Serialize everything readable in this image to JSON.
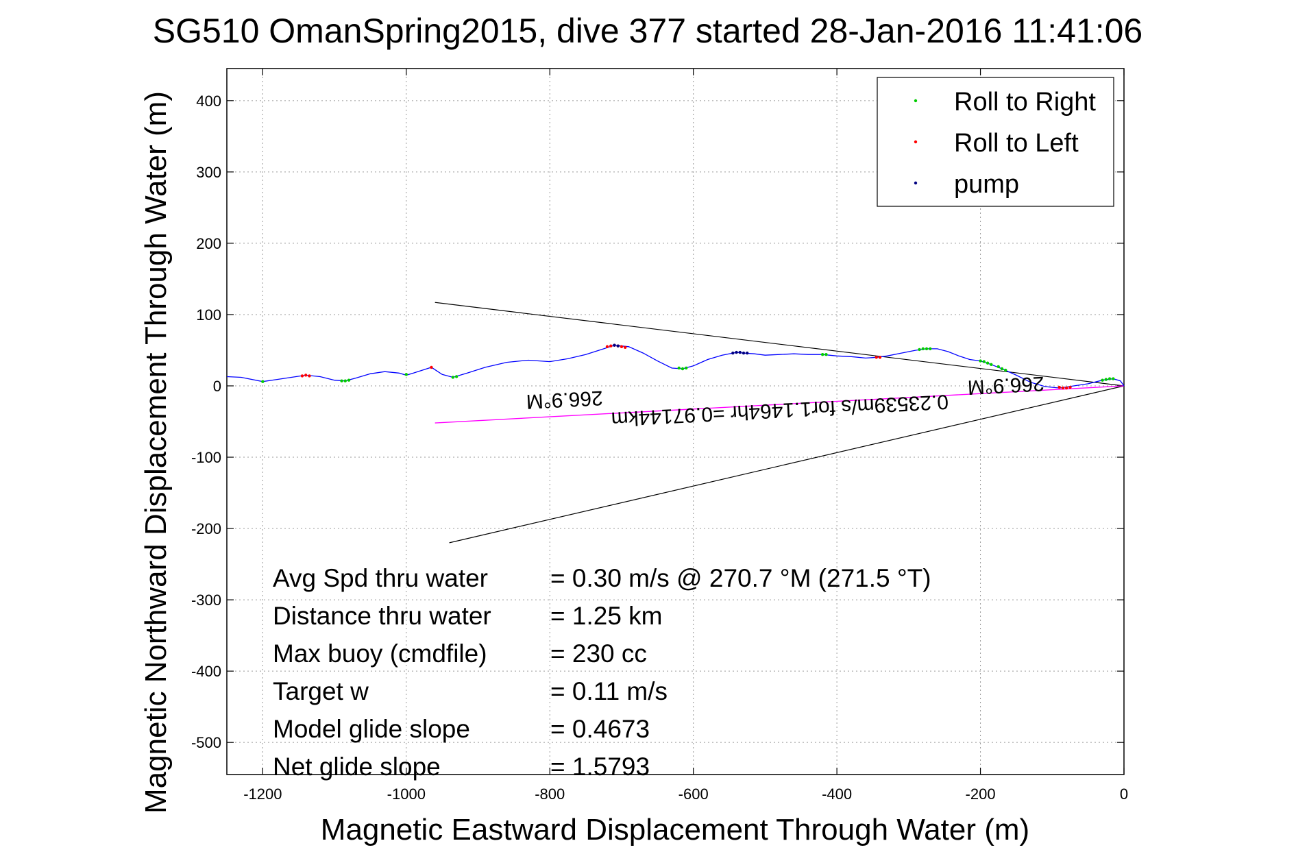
{
  "chart_data": {
    "type": "line",
    "title": "SG510 OmanSpring2015, dive 377 started 28-Jan-2016 11:41:06",
    "xlabel": "Magnetic Eastward Displacement Through Water (m)",
    "ylabel": "Magnetic Northward Displacement Through Water (m)",
    "xlim": [
      -1250,
      0
    ],
    "ylim": [
      -545,
      445
    ],
    "xticks": [
      -1200,
      -1000,
      -800,
      -600,
      -400,
      -200,
      0
    ],
    "yticks": [
      -500,
      -400,
      -300,
      -200,
      -100,
      0,
      100,
      200,
      300,
      400
    ],
    "xtick_labels": [
      "-1200",
      "-1000",
      "-800",
      "-600",
      "-400",
      "-200",
      "0"
    ],
    "ytick_labels": [
      "-500",
      "-400",
      "-300",
      "-200",
      "-100",
      "0",
      "100",
      "200",
      "300",
      "400"
    ],
    "grid": true,
    "legend_position": "top-right",
    "legend": [
      {
        "label": "Roll to Right",
        "color": "#00cc00"
      },
      {
        "label": "Roll to Left",
        "color": "#ff0000"
      },
      {
        "label": "pump",
        "color": "#000080"
      }
    ],
    "track": {
      "color": "#0000ff",
      "x": [
        -1250,
        -1230,
        -1200,
        -1180,
        -1160,
        -1140,
        -1120,
        -1100,
        -1085,
        -1070,
        -1050,
        -1030,
        -1010,
        -1000,
        -990,
        -965,
        -950,
        -935,
        -915,
        -890,
        -860,
        -830,
        -800,
        -775,
        -750,
        -725,
        -710,
        -690,
        -670,
        -650,
        -630,
        -615,
        -600,
        -580,
        -560,
        -540,
        -530,
        -515,
        -500,
        -480,
        -460,
        -440,
        -420,
        -400,
        -380,
        -360,
        -345,
        -330,
        -310,
        -290,
        -275,
        -260,
        -245,
        -230,
        -215,
        -200,
        -185,
        -170,
        -150,
        -130,
        -110,
        -90,
        -70,
        -50,
        -30,
        -15,
        -5,
        0
      ],
      "y": [
        13,
        12,
        6,
        9,
        12,
        15,
        13,
        8,
        7,
        11,
        17,
        20,
        18,
        15,
        18,
        26,
        16,
        12,
        18,
        26,
        33,
        36,
        34,
        38,
        44,
        52,
        57,
        55,
        46,
        35,
        25,
        24,
        28,
        37,
        43,
        47,
        46,
        45,
        43,
        44,
        45,
        44,
        44,
        42,
        41,
        39,
        40,
        42,
        46,
        50,
        52,
        52,
        48,
        42,
        37,
        35,
        30,
        24,
        15,
        5,
        -1,
        -3,
        0,
        3,
        8,
        10,
        7,
        0
      ]
    },
    "roll_right_points": {
      "color": "#00cc00",
      "x": [
        -1200,
        -1090,
        -1085,
        -1080,
        -1000,
        -935,
        -930,
        -620,
        -615,
        -610,
        -420,
        -415,
        -285,
        -280,
        -275,
        -270,
        -200,
        -195,
        -190,
        -185,
        -175,
        -170,
        -165,
        -30,
        -25,
        -20,
        -15
      ],
      "y": [
        6,
        7,
        7,
        8,
        16,
        12,
        13,
        25,
        24,
        25,
        44,
        44,
        51,
        52,
        52,
        52,
        35,
        34,
        32,
        30,
        27,
        24,
        22,
        8,
        9,
        10,
        10
      ]
    },
    "roll_left_points": {
      "color": "#ff0000",
      "x": [
        -1145,
        -1140,
        -1135,
        -965,
        -720,
        -715,
        -710,
        -705,
        -700,
        -695,
        -345,
        -340,
        -90,
        -85,
        -80,
        -75
      ],
      "y": [
        14,
        15,
        14,
        26,
        55,
        56,
        57,
        56,
        55,
        54,
        40,
        40,
        -2,
        -3,
        -3,
        -2
      ]
    },
    "pump_points": {
      "color": "#000080",
      "x": [
        -710,
        -705,
        -545,
        -540,
        -535,
        -530,
        -525
      ],
      "y": [
        57,
        56,
        46,
        47,
        47,
        46,
        46
      ]
    },
    "fan_lines": [
      {
        "color": "#000000",
        "x": [
          -960,
          0
        ],
        "y": [
          117,
          0
        ]
      },
      {
        "color": "#000000",
        "x": [
          -940,
          0
        ],
        "y": [
          -220,
          0
        ]
      }
    ],
    "heading_line": {
      "color": "#ff00ff",
      "x": [
        -960,
        0
      ],
      "y": [
        -52,
        0
      ]
    },
    "annotations_rotated": [
      {
        "text": "266.9°M",
        "x": -165,
        "y": 10
      },
      {
        "text": "0.23539m/s for1.1464hr =0.97144km",
        "x": -480,
        "y": -25
      },
      {
        "text": "266.9°M",
        "x": -780,
        "y": -10
      }
    ],
    "summary_rows": [
      {
        "label": "Avg Spd thru water",
        "value": "=  0.30 m/s @ 270.7 °M (271.5 °T)"
      },
      {
        "label": "Distance thru water",
        "value": "=  1.25 km"
      },
      {
        "label": "Max buoy (cmdfile)",
        "value": "= 230 cc"
      },
      {
        "label": "Target w",
        "value": "= 0.11 m/s"
      },
      {
        "label": "Model glide slope",
        "value": "= 0.4673"
      },
      {
        "label": "Net glide slope",
        "value": "= 1.5793"
      }
    ]
  }
}
